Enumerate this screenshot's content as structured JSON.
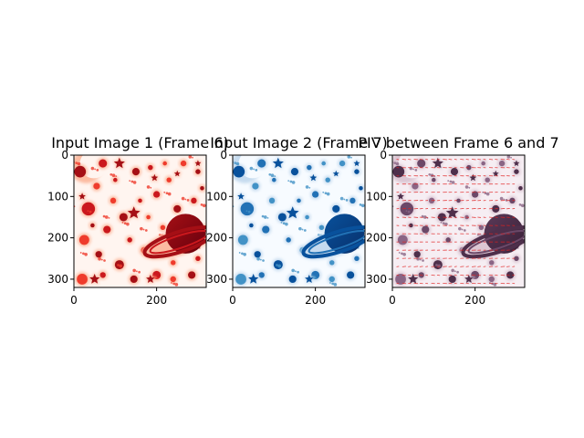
{
  "figure": {
    "background": "#ffffff"
  },
  "chart_data": [
    {
      "type": "image",
      "title": "Input Image 1 (Frame 6)",
      "colormap": "Reds",
      "xticks": [
        0,
        200
      ],
      "yticks": [
        0,
        100,
        200,
        300
      ],
      "xlim": [
        0,
        320
      ],
      "ylim": [
        320,
        0
      ],
      "content_icons": [
        "star-shape",
        "circle-shape",
        "planet-shape",
        "moon-shape"
      ]
    },
    {
      "type": "image",
      "title": "Input Image 2 (Frame 7)",
      "colormap": "Blues",
      "xticks": [
        0,
        200
      ],
      "yticks": [
        0,
        100,
        200,
        300
      ],
      "xlim": [
        0,
        320
      ],
      "ylim": [
        320,
        0
      ],
      "content_icons": [
        "star-shape",
        "circle-shape",
        "planet-shape",
        "moon-shape"
      ]
    },
    {
      "type": "image-with-quiver",
      "title": "PIV between Frame 6 and 7",
      "colormap": "overlay",
      "vector_color": "#e02020",
      "xticks": [
        0,
        200
      ],
      "yticks": [
        0,
        100,
        200,
        300
      ],
      "xlim": [
        0,
        320
      ],
      "ylim": [
        320,
        0
      ],
      "content_icons": [
        "star-shape",
        "circle-shape",
        "planet-shape",
        "moon-shape",
        "arrow-vector"
      ]
    }
  ]
}
